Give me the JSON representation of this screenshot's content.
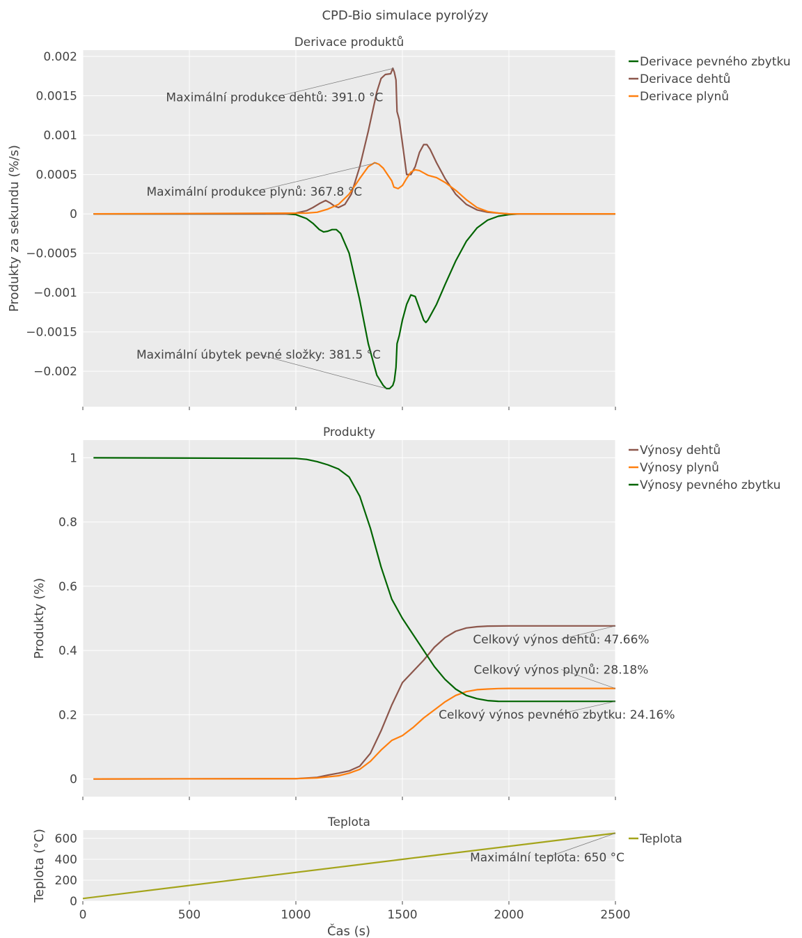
{
  "figure": {
    "title": "CPD-Bio simulace pyrolýzy",
    "xlabel": "Čas (s)",
    "background": "#ebebeb",
    "gridcolor": "#ffffff"
  },
  "chart_data": [
    {
      "type": "line",
      "title": "Derivace produktů",
      "xlabel": "",
      "ylabel": "Produkty za sekundu (%/s)",
      "xlim": [
        0,
        2500
      ],
      "ylim": [
        -0.00245,
        0.00208
      ],
      "y_ticks": [
        -0.002,
        -0.0015,
        -0.001,
        -0.0005,
        0,
        0.0005,
        0.001,
        0.0015,
        0.002
      ],
      "y_tick_labels": [
        "−0.002",
        "−0.0015",
        "−0.001",
        "−0.0005",
        "0",
        "0.0005",
        "0.001",
        "0.0015",
        "0.002"
      ],
      "x_ticks": [
        0,
        500,
        1000,
        1500,
        2000,
        2500
      ],
      "grid": true,
      "legend_placement": "right",
      "series": [
        {
          "name": "Derivace pevného zbytku",
          "color": "#006400",
          "x": [
            50,
            950,
            1000,
            1050,
            1080,
            1110,
            1130,
            1150,
            1170,
            1190,
            1210,
            1250,
            1300,
            1340,
            1380,
            1410,
            1425,
            1440,
            1455,
            1462,
            1470,
            1475,
            1485,
            1500,
            1520,
            1540,
            1560,
            1580,
            1600,
            1610,
            1620,
            1660,
            1700,
            1750,
            1800,
            1850,
            1900,
            1950,
            2000,
            2050,
            2500
          ],
          "y": [
            0,
            0,
            -1e-05,
            -6e-05,
            -0.00012,
            -0.0002,
            -0.00023,
            -0.00022,
            -0.0002,
            -0.0002,
            -0.00025,
            -0.0005,
            -0.0011,
            -0.00165,
            -0.00205,
            -0.00218,
            -0.00222,
            -0.00222,
            -0.00218,
            -0.00212,
            -0.00195,
            -0.00165,
            -0.00155,
            -0.00135,
            -0.00115,
            -0.00103,
            -0.00105,
            -0.0012,
            -0.00135,
            -0.00138,
            -0.00135,
            -0.00115,
            -0.0009,
            -0.0006,
            -0.00035,
            -0.00018,
            -8e-05,
            -3e-05,
            -1e-05,
            0,
            0
          ]
        },
        {
          "name": "Derivace dehtů",
          "color": "#8c564b",
          "x": [
            50,
            950,
            1000,
            1050,
            1080,
            1110,
            1140,
            1160,
            1180,
            1200,
            1230,
            1260,
            1300,
            1340,
            1380,
            1400,
            1420,
            1445,
            1455,
            1462,
            1470,
            1475,
            1485,
            1500,
            1520,
            1540,
            1560,
            1580,
            1600,
            1615,
            1630,
            1660,
            1700,
            1750,
            1800,
            1850,
            1900,
            1950,
            2000,
            2500
          ],
          "y": [
            0,
            0,
            1e-05,
            4e-05,
            8e-05,
            0.00013,
            0.00017,
            0.00014,
            0.0001,
            8e-05,
            0.00012,
            0.00025,
            0.0006,
            0.00105,
            0.00155,
            0.00172,
            0.00177,
            0.00178,
            0.00185,
            0.0018,
            0.0017,
            0.0013,
            0.0012,
            0.0009,
            0.0005,
            0.0005,
            0.0006,
            0.00078,
            0.00088,
            0.00088,
            0.00082,
            0.00065,
            0.00045,
            0.00025,
            0.00012,
            5e-05,
            2e-05,
            1e-05,
            0,
            0
          ]
        },
        {
          "name": "Derivace plynů",
          "color": "#ff7f0e",
          "x": [
            50,
            1050,
            1100,
            1150,
            1200,
            1250,
            1300,
            1340,
            1370,
            1390,
            1410,
            1430,
            1450,
            1460,
            1480,
            1500,
            1520,
            1540,
            1560,
            1580,
            1600,
            1620,
            1660,
            1700,
            1750,
            1800,
            1850,
            1900,
            1950,
            2000,
            2050,
            2500
          ],
          "y": [
            0,
            1e-05,
            2e-05,
            6e-05,
            0.00012,
            0.00025,
            0.00045,
            0.0006,
            0.00065,
            0.00063,
            0.00058,
            0.0005,
            0.00042,
            0.00034,
            0.00032,
            0.00036,
            0.00045,
            0.00053,
            0.00056,
            0.00055,
            0.00052,
            0.00049,
            0.00046,
            0.0004,
            0.0003,
            0.00018,
            8e-05,
            3e-05,
            1e-05,
            0,
            0,
            0
          ]
        }
      ],
      "annotations": [
        {
          "text": "Maximální produkce dehtů: 391.0 °C",
          "x": 1460,
          "y": 0.00185,
          "tx": 900,
          "ty": 0.00143
        },
        {
          "text": "Maximální produkce plynů: 367.8 °C",
          "x": 1380,
          "y": 0.00065,
          "tx": 805,
          "ty": 0.00023
        },
        {
          "text": "Maximální úbytek pevné složky: 381.5 °C",
          "x": 1425,
          "y": -0.00222,
          "tx": 825,
          "ty": -0.00184
        }
      ]
    },
    {
      "type": "line",
      "title": "Produkty",
      "xlabel": "",
      "ylabel": "Produkty (%)",
      "xlim": [
        0,
        2500
      ],
      "ylim": [
        -0.055,
        1.055
      ],
      "y_ticks": [
        0,
        0.2,
        0.4,
        0.6,
        0.8,
        1
      ],
      "y_tick_labels": [
        "0",
        "0.2",
        "0.4",
        "0.6",
        "0.8",
        "1"
      ],
      "x_ticks": [
        0,
        500,
        1000,
        1500,
        2000,
        2500
      ],
      "grid": true,
      "legend_placement": "right",
      "series": [
        {
          "name": "Výnosy dehtů",
          "color": "#8c564b",
          "x": [
            50,
            1000,
            1100,
            1150,
            1200,
            1250,
            1300,
            1350,
            1400,
            1450,
            1500,
            1550,
            1600,
            1650,
            1700,
            1750,
            1800,
            1850,
            1900,
            2000,
            2100,
            2500
          ],
          "y": [
            0,
            0.001,
            0.005,
            0.012,
            0.018,
            0.025,
            0.04,
            0.08,
            0.15,
            0.23,
            0.3,
            0.335,
            0.37,
            0.41,
            0.44,
            0.46,
            0.47,
            0.474,
            0.476,
            0.4766,
            0.4766,
            0.4766
          ]
        },
        {
          "name": "Výnosy plynů",
          "color": "#ff7f0e",
          "x": [
            50,
            1000,
            1100,
            1200,
            1250,
            1300,
            1350,
            1400,
            1450,
            1500,
            1550,
            1600,
            1650,
            1700,
            1750,
            1800,
            1850,
            1900,
            1950,
            2000,
            2100,
            2500
          ],
          "y": [
            0,
            0.001,
            0.003,
            0.01,
            0.018,
            0.03,
            0.055,
            0.09,
            0.12,
            0.135,
            0.16,
            0.19,
            0.215,
            0.24,
            0.26,
            0.272,
            0.278,
            0.28,
            0.2815,
            0.2818,
            0.2818,
            0.2818
          ]
        },
        {
          "name": "Výnosy pevného zbytku",
          "color": "#006400",
          "x": [
            50,
            1000,
            1050,
            1100,
            1150,
            1200,
            1250,
            1300,
            1350,
            1400,
            1450,
            1500,
            1550,
            1600,
            1650,
            1700,
            1750,
            1800,
            1850,
            1900,
            1950,
            2000,
            2100,
            2500
          ],
          "y": [
            1.0,
            0.998,
            0.995,
            0.988,
            0.978,
            0.965,
            0.94,
            0.88,
            0.78,
            0.66,
            0.56,
            0.5,
            0.45,
            0.4,
            0.35,
            0.31,
            0.28,
            0.26,
            0.25,
            0.244,
            0.2418,
            0.2416,
            0.2416,
            0.2416
          ]
        }
      ],
      "annotations": [
        {
          "text": "Celkový výnos dehtů: 47.66%",
          "x": 2500,
          "y": 0.4766,
          "tx": 2245,
          "ty": 0.422
        },
        {
          "text": "Celkový výnos plynů: 28.18%",
          "x": 2500,
          "y": 0.2818,
          "tx": 2245,
          "ty": 0.328
        },
        {
          "text": "Celkový výnos pevného zbytku: 24.16%",
          "x": 2500,
          "y": 0.2416,
          "tx": 2225,
          "ty": 0.188
        }
      ]
    },
    {
      "type": "line",
      "title": "Teplota",
      "xlabel": "Čas (s)",
      "ylabel": "Teplota (°C)",
      "xlim": [
        0,
        2500
      ],
      "ylim": [
        0,
        680
      ],
      "y_ticks": [
        0,
        200,
        400,
        600
      ],
      "y_tick_labels": [
        "0",
        "200",
        "400",
        "600"
      ],
      "x_ticks": [
        0,
        500,
        1000,
        1500,
        2000,
        2500
      ],
      "x_tick_labels": [
        "0",
        "500",
        "1000",
        "1500",
        "2000",
        "2500"
      ],
      "grid": true,
      "legend_placement": "right",
      "series": [
        {
          "name": "Teplota",
          "color": "#a4a41a",
          "x": [
            0,
            2500
          ],
          "y": [
            25,
            650
          ]
        }
      ],
      "annotations": [
        {
          "text": "Maximální teplota: 650 °C",
          "x": 2500,
          "y": 650,
          "tx": 2180,
          "ty": 380
        }
      ]
    }
  ]
}
